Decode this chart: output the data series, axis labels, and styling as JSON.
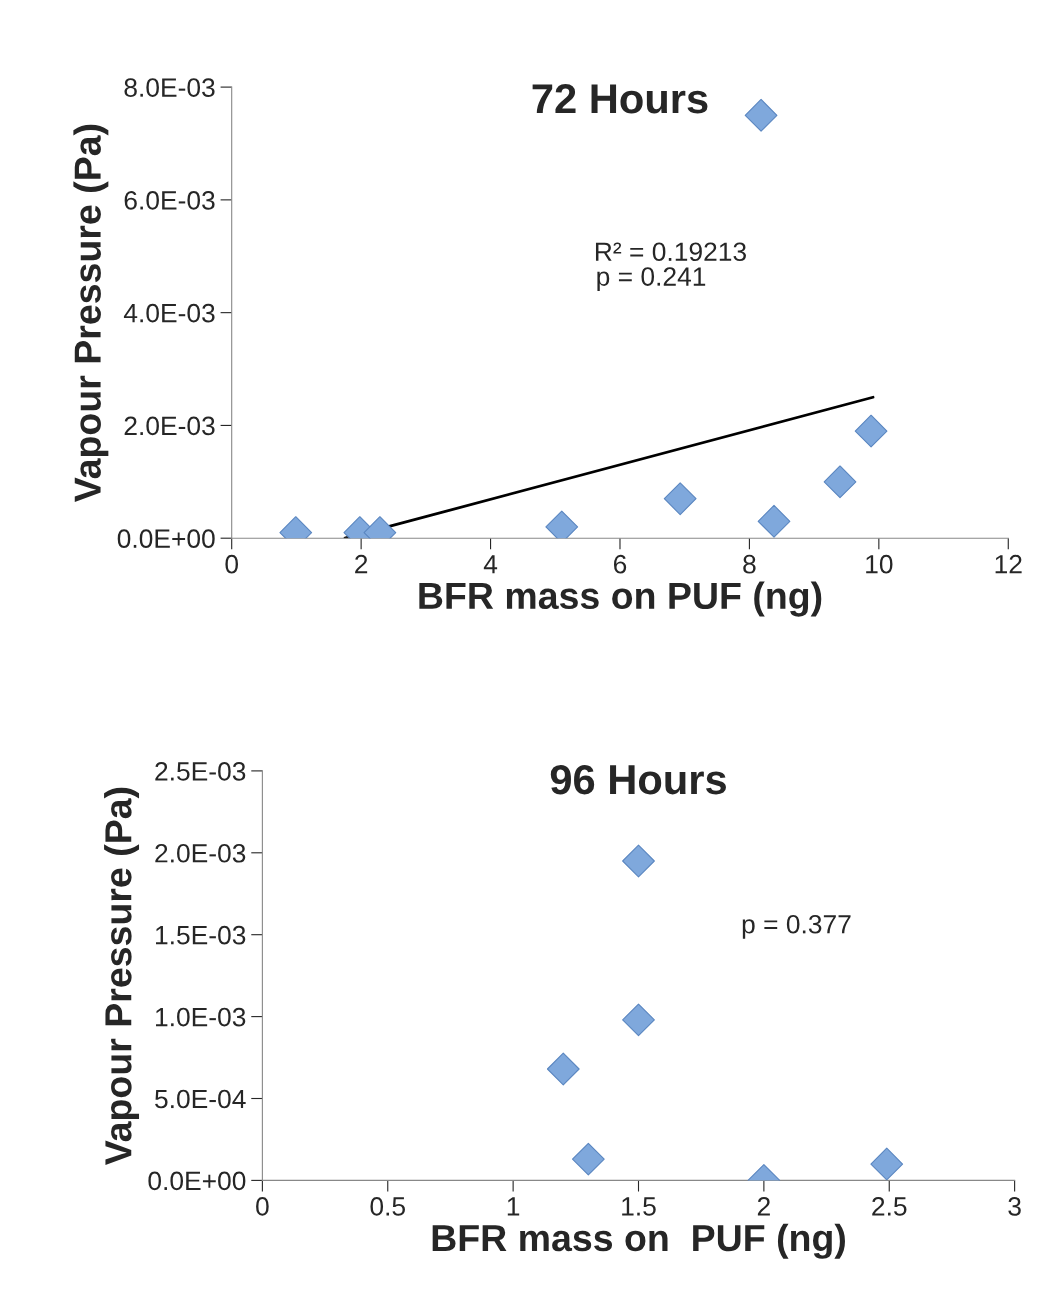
{
  "chart_data": [
    {
      "type": "scatter",
      "title": "72 Hours",
      "xlabel": "BFR mass on PUF (ng)",
      "ylabel": "Vapour Pressure (Pa)",
      "marker": "diamond",
      "grid": false,
      "legend": false,
      "series": [
        {
          "color": "#7fa8dc",
          "x": [
            0.99,
            1.98,
            2.29,
            5.1,
            6.93,
            8.18,
            8.38,
            9.4,
            9.88
          ],
          "values": [
            0.0001,
            0.0001,
            0.0001,
            0.0002,
            0.0007,
            0.0075,
            0.0003,
            0.001,
            0.0019
          ]
        },
        {
          "type": "line",
          "color": "#000000",
          "marker": "none",
          "x": [
            1.75,
            9.91
          ],
          "values": [
            0,
            0.0025
          ]
        }
      ],
      "xlim": [
        0,
        12
      ],
      "xticks": [
        0,
        2,
        4,
        6,
        8,
        10,
        12
      ],
      "ylim": [
        0,
        0.008
      ],
      "yticks": [
        {
          "value": 0,
          "label": "0.0E+00"
        },
        {
          "value": 0.002,
          "label": "2.0E-03"
        },
        {
          "value": 0.004,
          "label": "4.0E-03"
        },
        {
          "value": 0.006,
          "label": "6.0E-03"
        },
        {
          "value": 0.008,
          "label": "8.0E-03"
        }
      ],
      "annotations": [
        "R² = 0.19213",
        "p = 0.241"
      ]
    },
    {
      "type": "scatter",
      "title": "96 Hours",
      "xlabel": "BFR mass on  PUF (ng)",
      "ylabel": "Vapour Pressure (Pa)",
      "marker": "diamond",
      "grid": false,
      "legend": false,
      "series": [
        {
          "color": "#7fa8dc",
          "x": [
            1.2,
            1.3,
            1.5,
            1.5,
            2.0,
            2.49
          ],
          "values": [
            0.00068,
            0.00013,
            0.00195,
            0.00098,
            0,
            0.0001
          ]
        }
      ],
      "xlim": [
        0,
        3
      ],
      "xticks": [
        0,
        0.5,
        1,
        1.5,
        2,
        2.5,
        3
      ],
      "ylim": [
        0,
        0.0025
      ],
      "yticks": [
        {
          "value": 0,
          "label": "0.0E+00"
        },
        {
          "value": 0.0005,
          "label": "5.0E-04"
        },
        {
          "value": 0.001,
          "label": "1.0E-03"
        },
        {
          "value": 0.0015,
          "label": "1.5E-03"
        },
        {
          "value": 0.002,
          "label": "2.0E-03"
        },
        {
          "value": 0.0025,
          "label": "2.5E-03"
        }
      ],
      "annotations": [
        "p = 0.377"
      ]
    }
  ]
}
